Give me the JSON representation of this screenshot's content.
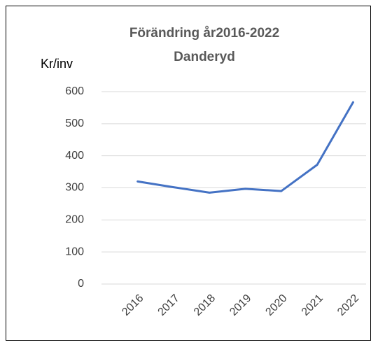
{
  "chart_data": {
    "type": "line",
    "title": "Förändring år2016-2022",
    "subtitle": "Danderyd",
    "y_label": "Kr/inv",
    "categories": [
      "2016",
      "2017",
      "2018",
      "2019",
      "2020",
      "2021",
      "2022"
    ],
    "series": [
      {
        "name": "Danderyd",
        "color": "#4472c4",
        "values": [
          320,
          302,
          285,
          297,
          290,
          372,
          567
        ]
      }
    ],
    "ylim": [
      0,
      600
    ],
    "yticks": [
      0,
      100,
      200,
      300,
      400,
      500,
      600
    ],
    "grid": true
  }
}
